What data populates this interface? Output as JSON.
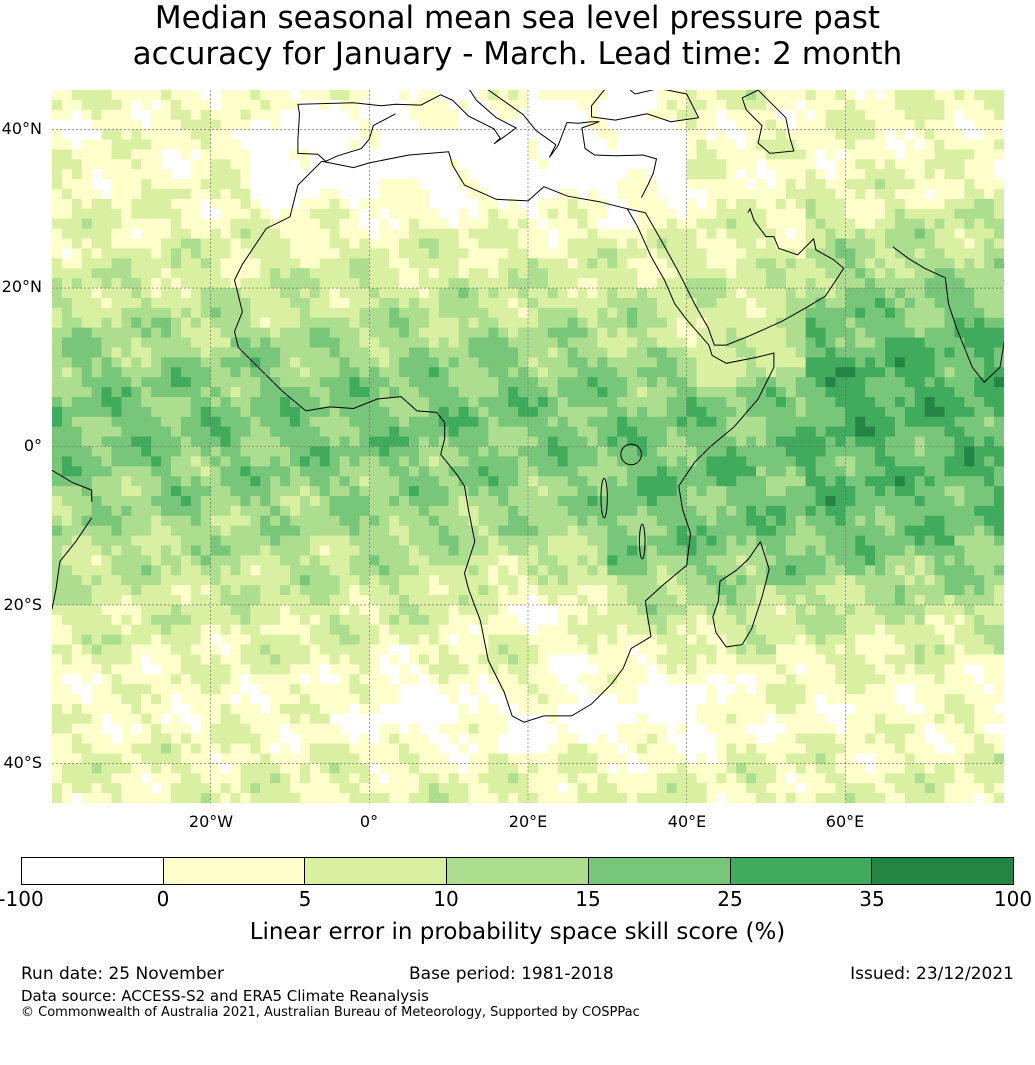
{
  "title": {
    "line1": "Median seasonal mean sea level pressure past",
    "line2": "accuracy for January - March. Lead time: 2 month"
  },
  "map": {
    "lat_labels": [
      "40°N",
      "20°N",
      "0°",
      "20°S",
      "40°S"
    ],
    "lon_labels": [
      "20°W",
      "0°",
      "20°E",
      "40°E",
      "60°E"
    ],
    "lat_values": [
      40,
      20,
      0,
      -20,
      -40
    ],
    "lon_values": [
      -20,
      0,
      20,
      40,
      60
    ],
    "extent": {
      "lon_min": -40,
      "lon_max": 80,
      "lat_min": -45,
      "lat_max": 45
    }
  },
  "colorbar": {
    "ticks": [
      "-100",
      "0",
      "5",
      "10",
      "15",
      "25",
      "35",
      "100"
    ],
    "colors": [
      "#ffffff",
      "#ffffcc",
      "#d9f0a3",
      "#addd8e",
      "#78c679",
      "#41ab5d",
      "#238443"
    ],
    "label": "Linear error in probability space skill score (%)"
  },
  "footer": {
    "run_date": "Run date: 25 November",
    "base_period": "Base period: 1981-2018",
    "issued": "Issued: 23/12/2021",
    "data_source": "Data source: ACCESS-S2 and ERA5 Climate Reanalysis",
    "copyright": "© Commonwealth of Australia 2021, Australian Bureau of Meteorology, Supported by COSPPac"
  }
}
